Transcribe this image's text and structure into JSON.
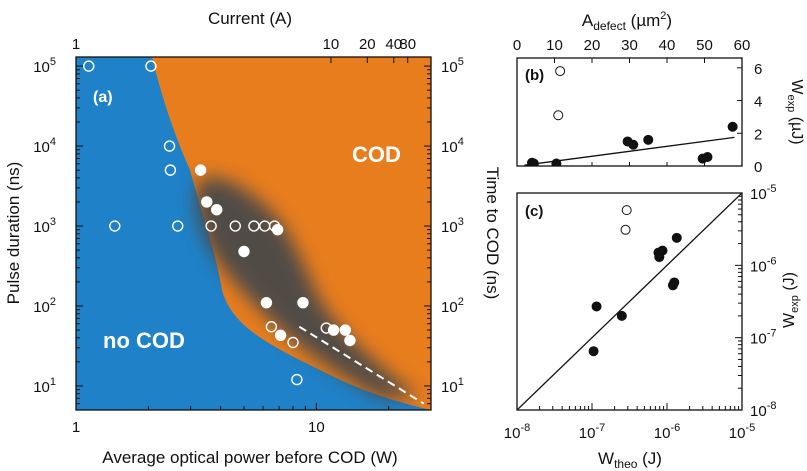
{
  "chart_data": [
    {
      "type": "scatter",
      "panel": "(a)",
      "top_axis_label": "Current (A)",
      "xlabel": "Average optical power before COD (W)",
      "ylabel": "Pulse duration (ns)",
      "right_axis_label": "Time to COD (ns)",
      "x_scale": "log",
      "y_scale": "log",
      "xlim": [
        1,
        30
      ],
      "ylim": [
        5,
        130000
      ],
      "x_ticks": [
        {
          "v": 1,
          "label": "1"
        },
        {
          "v": 10,
          "label": "10"
        }
      ],
      "y_ticks": [
        {
          "v": 10,
          "label": "10",
          "exp": "1"
        },
        {
          "v": 100,
          "label": "10",
          "exp": "2"
        },
        {
          "v": 1000,
          "label": "10",
          "exp": "3"
        },
        {
          "v": 10000,
          "label": "10",
          "exp": "4"
        },
        {
          "v": 100000,
          "label": "10",
          "exp": "5"
        }
      ],
      "top_ticks": [
        {
          "p": 1.0,
          "label": "1"
        },
        {
          "p": 11.5,
          "label": "10"
        },
        {
          "p": 16.3,
          "label": "20"
        },
        {
          "p": 21.0,
          "label": "40"
        },
        {
          "p": 24.0,
          "label": "80"
        }
      ],
      "regions": {
        "no_cod": "no COD",
        "cod": "COD"
      },
      "colors": {
        "no_cod": "#1f82c8",
        "cod": "#e87d1e",
        "transition": "#4a4a4a"
      },
      "series": [
        {
          "marker": "open",
          "points": [
            [
              1.13,
              100000
            ],
            [
              2.05,
              100000
            ],
            [
              2.45,
              10000
            ],
            [
              2.47,
              5000
            ],
            [
              1.45,
              1000
            ],
            [
              2.65,
              1000
            ],
            [
              3.65,
              1000
            ],
            [
              4.6,
              1000
            ],
            [
              5.5,
              1000
            ],
            [
              6.1,
              1000
            ],
            [
              6.7,
              1000
            ],
            [
              6.5,
              55
            ],
            [
              8.0,
              35
            ],
            [
              11.0,
              53
            ],
            [
              8.3,
              12
            ]
          ]
        },
        {
          "marker": "filled",
          "points": [
            [
              3.3,
              5000
            ],
            [
              3.5,
              2000
            ],
            [
              3.85,
              1600
            ],
            [
              6.9,
              900
            ],
            [
              5.0,
              480
            ],
            [
              6.2,
              110
            ],
            [
              8.8,
              110
            ],
            [
              7.1,
              43
            ],
            [
              11.8,
              50
            ],
            [
              13.2,
              50
            ],
            [
              13.8,
              37
            ]
          ]
        }
      ],
      "guide_line": {
        "style": "dashed",
        "from": [
          8.5,
          55
        ],
        "to": [
          28,
          6
        ]
      }
    },
    {
      "type": "scatter",
      "panel": "(b)",
      "top_axis_label": "A",
      "top_axis_sub": "defect",
      "top_axis_unit": " (µm",
      "top_axis_unit_sup": "2",
      "top_axis_unit_end": ")",
      "right_axis_label": "W",
      "right_axis_sub": "exp",
      "right_axis_unit": " (µJ)",
      "xlim": [
        0,
        60
      ],
      "ylim": [
        0,
        6.6
      ],
      "x_ticks": [
        0,
        10,
        20,
        30,
        40,
        50,
        60
      ],
      "y_ticks": [
        0,
        2,
        4,
        6
      ],
      "series": [
        {
          "marker": "open",
          "points": [
            [
              11.5,
              5.8
            ],
            [
              11.0,
              3.1
            ]
          ]
        },
        {
          "marker": "filled",
          "points": [
            [
              4.0,
              0.2
            ],
            [
              4.5,
              0.15
            ],
            [
              10.5,
              0.15
            ],
            [
              29.5,
              1.5
            ],
            [
              31.0,
              1.3
            ],
            [
              35.0,
              1.6
            ],
            [
              49.5,
              0.45
            ],
            [
              50.8,
              0.55
            ],
            [
              57.5,
              2.4
            ]
          ]
        }
      ],
      "fit_line": {
        "from": [
          2,
          0.05
        ],
        "to": [
          58,
          1.75
        ]
      }
    },
    {
      "type": "scatter",
      "panel": "(c)",
      "xlabel": "W",
      "xlabel_sub": "theo",
      "xlabel_unit": " (J)",
      "right_axis_label": "W",
      "right_axis_sub": "exp",
      "right_axis_unit": " (J)",
      "x_scale": "log",
      "y_scale": "log",
      "xlim": [
        1e-08,
        1e-05
      ],
      "ylim": [
        1e-08,
        1e-05
      ],
      "x_ticks": [
        {
          "v": 1e-08,
          "label": "10",
          "exp": "-8"
        },
        {
          "v": 1e-07,
          "label": "10",
          "exp": "-7"
        },
        {
          "v": 1e-06,
          "label": "10",
          "exp": "-6"
        },
        {
          "v": 1e-05,
          "label": "10",
          "exp": "-5"
        }
      ],
      "y_ticks": [
        {
          "v": 1e-08,
          "label": "10",
          "exp": "-8"
        },
        {
          "v": 1e-07,
          "label": "10",
          "exp": "-7"
        },
        {
          "v": 1e-06,
          "label": "10",
          "exp": "-6"
        },
        {
          "v": 1e-05,
          "label": "10",
          "exp": "-5"
        }
      ],
      "series": [
        {
          "marker": "open",
          "points": [
            [
              2.9e-07,
              5.8e-06
            ],
            [
              2.8e-07,
              3.1e-06
            ]
          ]
        },
        {
          "marker": "filled",
          "points": [
            [
              1.05e-07,
              6.5e-08
            ],
            [
              1.15e-07,
              2.7e-07
            ],
            [
              2.5e-07,
              2e-07
            ],
            [
              7.7e-07,
              1.5e-06
            ],
            [
              7.9e-07,
              1.3e-06
            ],
            [
              8.7e-07,
              1.6e-06
            ],
            [
              1.2e-06,
              5.3e-07
            ],
            [
              1.25e-06,
              5.8e-07
            ],
            [
              1.35e-06,
              2.4e-06
            ]
          ]
        }
      ],
      "diagonal": {
        "from": [
          1e-08,
          1e-08
        ],
        "to": [
          1e-05,
          1e-05
        ]
      }
    }
  ]
}
